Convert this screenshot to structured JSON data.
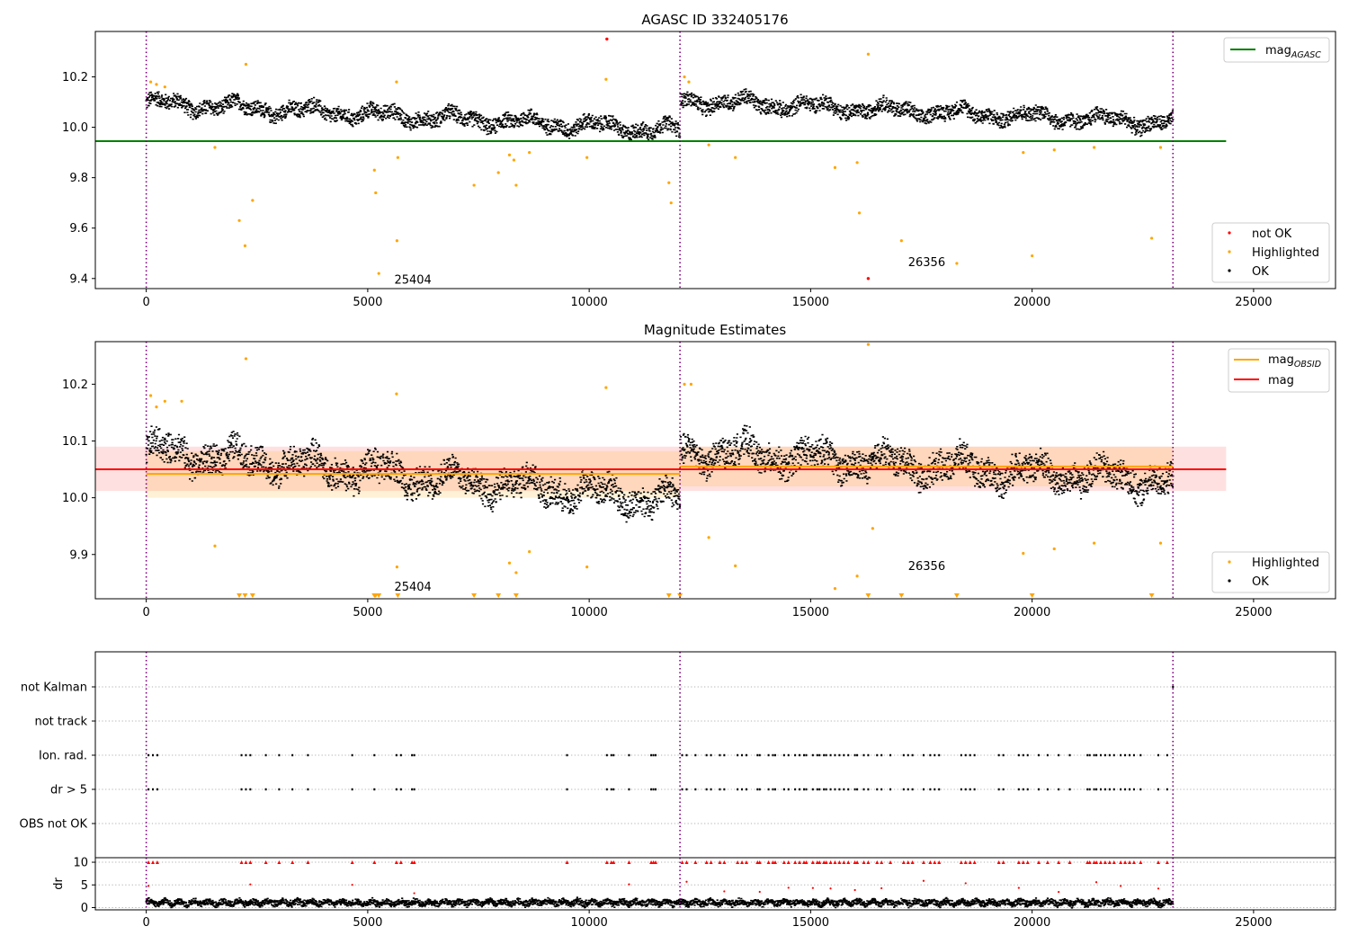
{
  "chart_data": [
    {
      "type": "scatter",
      "title": "AGASC ID 332405176",
      "xlim": [
        -1150,
        26850
      ],
      "ylim": [
        9.36,
        10.38
      ],
      "xticks": [
        0,
        5000,
        10000,
        15000,
        20000,
        25000
      ],
      "yticks": [
        9.4,
        9.6,
        9.8,
        10.0,
        10.2
      ],
      "ytick_labels": [
        "9.4",
        "9.6",
        "9.8",
        "10.0",
        "10.2"
      ],
      "vlines_x": [
        0,
        12050,
        23180
      ],
      "segments": [
        {
          "x0": 0,
          "x1": 12050,
          "y_start": 10.1,
          "y_end": 9.99
        },
        {
          "x0": 12050,
          "x1": 23180,
          "y_start": 10.11,
          "y_end": 10.02
        }
      ],
      "noise_amp": 0.035,
      "reference_lines": [
        {
          "name": "mag$_{AGASC}$",
          "y": 9.945,
          "x0": -1150,
          "x1": 24380,
          "color": "#008000"
        }
      ],
      "highlighted": [
        [
          100,
          10.18
        ],
        [
          230,
          10.17
        ],
        [
          420,
          10.16
        ],
        [
          1550,
          9.92
        ],
        [
          2100,
          9.63
        ],
        [
          2230,
          9.53
        ],
        [
          2250,
          10.25
        ],
        [
          2400,
          9.71
        ],
        [
          5150,
          9.83
        ],
        [
          5180,
          9.74
        ],
        [
          5250,
          9.42
        ],
        [
          5650,
          10.18
        ],
        [
          5660,
          9.55
        ],
        [
          5680,
          9.88
        ],
        [
          7400,
          9.77
        ],
        [
          7950,
          9.82
        ],
        [
          8200,
          9.89
        ],
        [
          8350,
          9.77
        ],
        [
          8300,
          9.87
        ],
        [
          8650,
          9.9
        ],
        [
          9950,
          9.88
        ],
        [
          10380,
          10.19
        ],
        [
          11800,
          9.78
        ],
        [
          11850,
          9.7
        ],
        [
          12150,
          10.2
        ],
        [
          12250,
          10.18
        ],
        [
          12700,
          9.93
        ],
        [
          13300,
          9.88
        ],
        [
          15550,
          9.84
        ],
        [
          16050,
          9.86
        ],
        [
          16100,
          9.66
        ],
        [
          16300,
          10.29
        ],
        [
          17050,
          9.55
        ],
        [
          18300,
          9.46
        ],
        [
          19800,
          9.9
        ],
        [
          20000,
          9.49
        ],
        [
          20500,
          9.91
        ],
        [
          21400,
          9.92
        ],
        [
          22700,
          9.56
        ],
        [
          22900,
          9.92
        ]
      ],
      "not_ok": [
        [
          10400,
          10.35
        ],
        [
          16300,
          9.4
        ]
      ],
      "obsid_labels": [
        {
          "x": 5600,
          "y": 9.38,
          "text": "25404"
        },
        {
          "x": 17200,
          "y": 9.45,
          "text": "26356"
        }
      ],
      "legend_lines": [
        "mag$_{AGASC}$"
      ],
      "legend_points": [
        {
          "label": "not OK",
          "color": "#ff0000"
        },
        {
          "label": "Highlighted",
          "color": "#ffa500"
        },
        {
          "label": "OK",
          "color": "#000000"
        }
      ]
    },
    {
      "type": "scatter",
      "title": "Magnitude Estimates",
      "xlim": [
        -1150,
        26850
      ],
      "ylim": [
        9.822,
        10.275
      ],
      "xticks": [
        0,
        5000,
        10000,
        15000,
        20000,
        25000
      ],
      "yticks": [
        9.9,
        10.0,
        10.1,
        10.2
      ],
      "ytick_labels": [
        "9.9",
        "10.0",
        "10.1",
        "10.2"
      ],
      "vlines_x": [
        0,
        12050,
        23180
      ],
      "segments": [
        {
          "x0": 0,
          "x1": 12050,
          "y_start": 10.085,
          "y_end": 9.995
        },
        {
          "x0": 12050,
          "x1": 23180,
          "y_start": 10.085,
          "y_end": 10.03
        }
      ],
      "noise_amp": 0.03,
      "mag": {
        "value": 10.05,
        "band": [
          10.012,
          10.09
        ],
        "x0": -1150,
        "x1": 24380,
        "color": "#ff0000"
      },
      "mag_obsid": [
        {
          "x0": 0,
          "x1": 12050,
          "value": 10.042,
          "band": [
            10.0,
            10.082
          ]
        },
        {
          "x0": 12050,
          "x1": 23180,
          "value": 10.055,
          "band": [
            10.02,
            10.09
          ]
        }
      ],
      "highlighted": [
        [
          100,
          10.18
        ],
        [
          230,
          10.16
        ],
        [
          420,
          10.17
        ],
        [
          800,
          10.17
        ],
        [
          1550,
          9.915
        ],
        [
          2250,
          10.245
        ],
        [
          5650,
          10.183
        ],
        [
          5660,
          9.878
        ],
        [
          8200,
          9.885
        ],
        [
          8350,
          9.868
        ],
        [
          8650,
          9.905
        ],
        [
          9950,
          9.878
        ],
        [
          10380,
          10.194
        ],
        [
          12150,
          10.2
        ],
        [
          12300,
          10.2
        ],
        [
          12700,
          9.93
        ],
        [
          13300,
          9.88
        ],
        [
          15550,
          9.84
        ],
        [
          16050,
          9.862
        ],
        [
          16300,
          10.27
        ],
        [
          16400,
          9.946
        ],
        [
          19800,
          9.902
        ],
        [
          20500,
          9.91
        ],
        [
          21400,
          9.92
        ],
        [
          22900,
          9.92
        ]
      ],
      "clipped": [
        2100,
        2230,
        2400,
        5150,
        5180,
        5250,
        5680,
        7400,
        7950,
        8350,
        11800,
        12050,
        16300,
        17050,
        18300,
        20000,
        22700
      ],
      "obsid_labels": [
        {
          "x": 5600,
          "y": 9.836,
          "text": "25404"
        },
        {
          "x": 17200,
          "y": 9.873,
          "text": "26356"
        }
      ],
      "legend_lines": [
        "mag$_{OBSID}$",
        "mag"
      ],
      "legend_points": [
        {
          "label": "Highlighted",
          "color": "#ffa500"
        },
        {
          "label": "OK",
          "color": "#000000"
        }
      ]
    },
    {
      "type": "scatter",
      "xlim": [
        -1150,
        26850
      ],
      "xticks": [
        0,
        5000,
        10000,
        15000,
        20000,
        25000
      ],
      "vlines_x": [
        0,
        12050,
        23180
      ],
      "flag_rows": [
        "not Kalman",
        "not track",
        "Ion. rad.",
        "dr > 5",
        "OBS not OK"
      ],
      "flag_events_x": [
        50,
        150,
        250,
        2150,
        2250,
        2350,
        2700,
        3000,
        3300,
        3650,
        4650,
        5150,
        5650,
        5750,
        6000,
        6050,
        9500,
        10400,
        10500,
        10550,
        10900,
        11400,
        11450,
        11500,
        12100,
        12200,
        12400,
        12650,
        12750,
        12950,
        13050,
        13350,
        13450,
        13550,
        13800,
        13850,
        14050,
        14150,
        14200,
        14400,
        14500,
        14650,
        14750,
        14850,
        14900,
        15050,
        15150,
        15200,
        15300,
        15350,
        15450,
        15550,
        15650,
        15750,
        15850,
        16000,
        16050,
        16200,
        16300,
        16500,
        16600,
        16800,
        17100,
        17200,
        17300,
        17550,
        17700,
        17800,
        17900,
        18400,
        18500,
        18600,
        18700,
        19250,
        19350,
        19700,
        19800,
        19900,
        20150,
        20350,
        20600,
        20850,
        21250,
        21300,
        21400,
        21450,
        21550,
        21650,
        21750,
        21850,
        22000,
        22100,
        22200,
        22300,
        22450,
        22850,
        23050
      ],
      "not_kalman_x": [
        23180
      ],
      "dr_ylim": [
        -0.5,
        11
      ],
      "dr_yticks": [
        0,
        5,
        10
      ],
      "dr_ytick_labels": [
        "0",
        "5",
        "10"
      ],
      "dr_ylabel": "dr"
    }
  ]
}
